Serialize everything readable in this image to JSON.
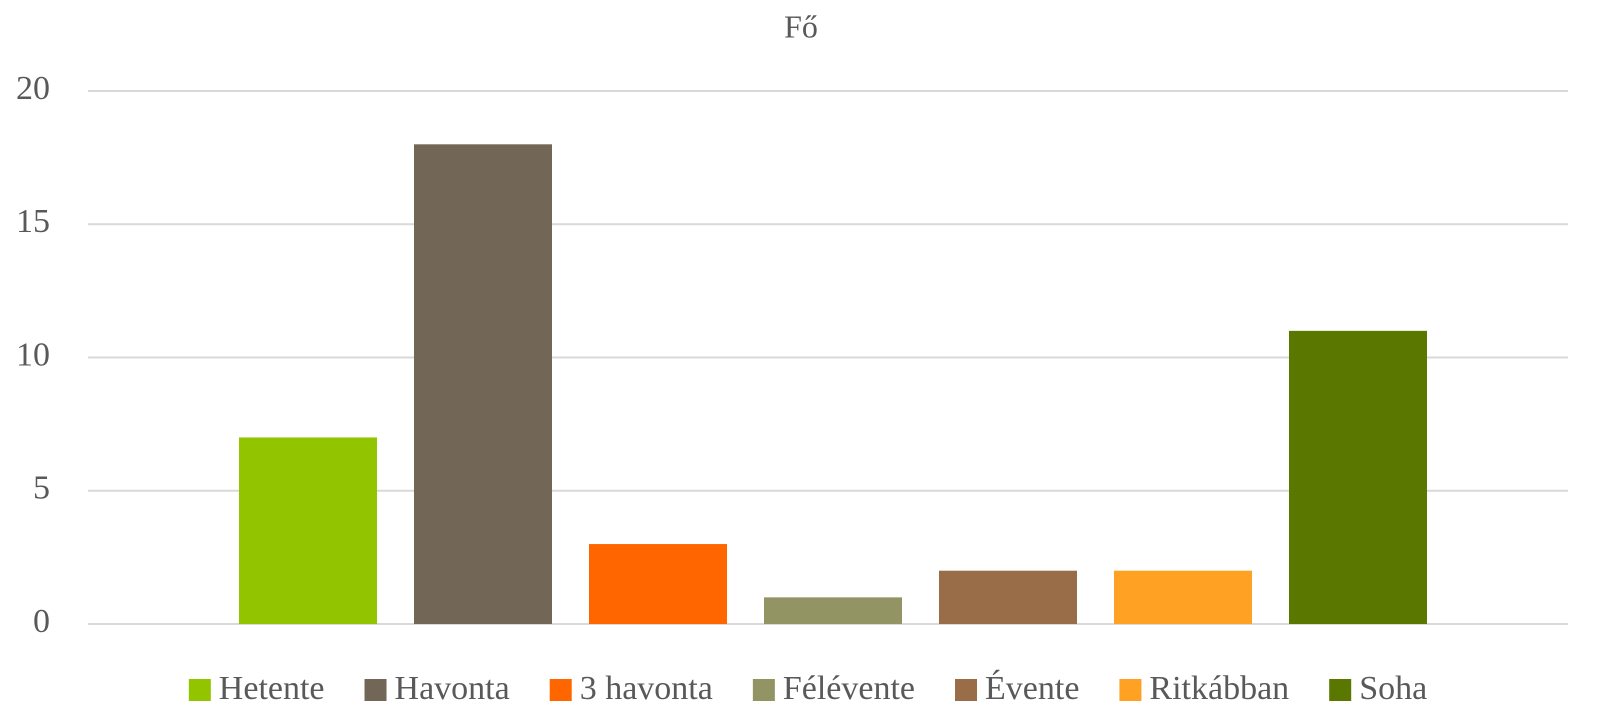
{
  "chart_data": {
    "type": "bar",
    "title": "Fő",
    "categories": [
      null
    ],
    "series": [
      {
        "name": "Hetente",
        "color": "#92c500",
        "values": [
          7
        ]
      },
      {
        "name": "Havonta",
        "color": "#726656",
        "values": [
          18
        ]
      },
      {
        "name": "3 havonta",
        "color": "#ff6600",
        "values": [
          3
        ]
      },
      {
        "name": "Félévente",
        "color": "#929563",
        "values": [
          1
        ]
      },
      {
        "name": "Évente",
        "color": "#986d47",
        "values": [
          2
        ]
      },
      {
        "name": "Ritkábban",
        "color": "#ffa123",
        "values": [
          2
        ]
      },
      {
        "name": "Soha",
        "color": "#5a7800",
        "values": [
          11
        ]
      }
    ],
    "ylim": [
      0,
      20
    ],
    "yticks": [
      0,
      5,
      10,
      15,
      20
    ],
    "grid": true,
    "legend": "bottom"
  }
}
